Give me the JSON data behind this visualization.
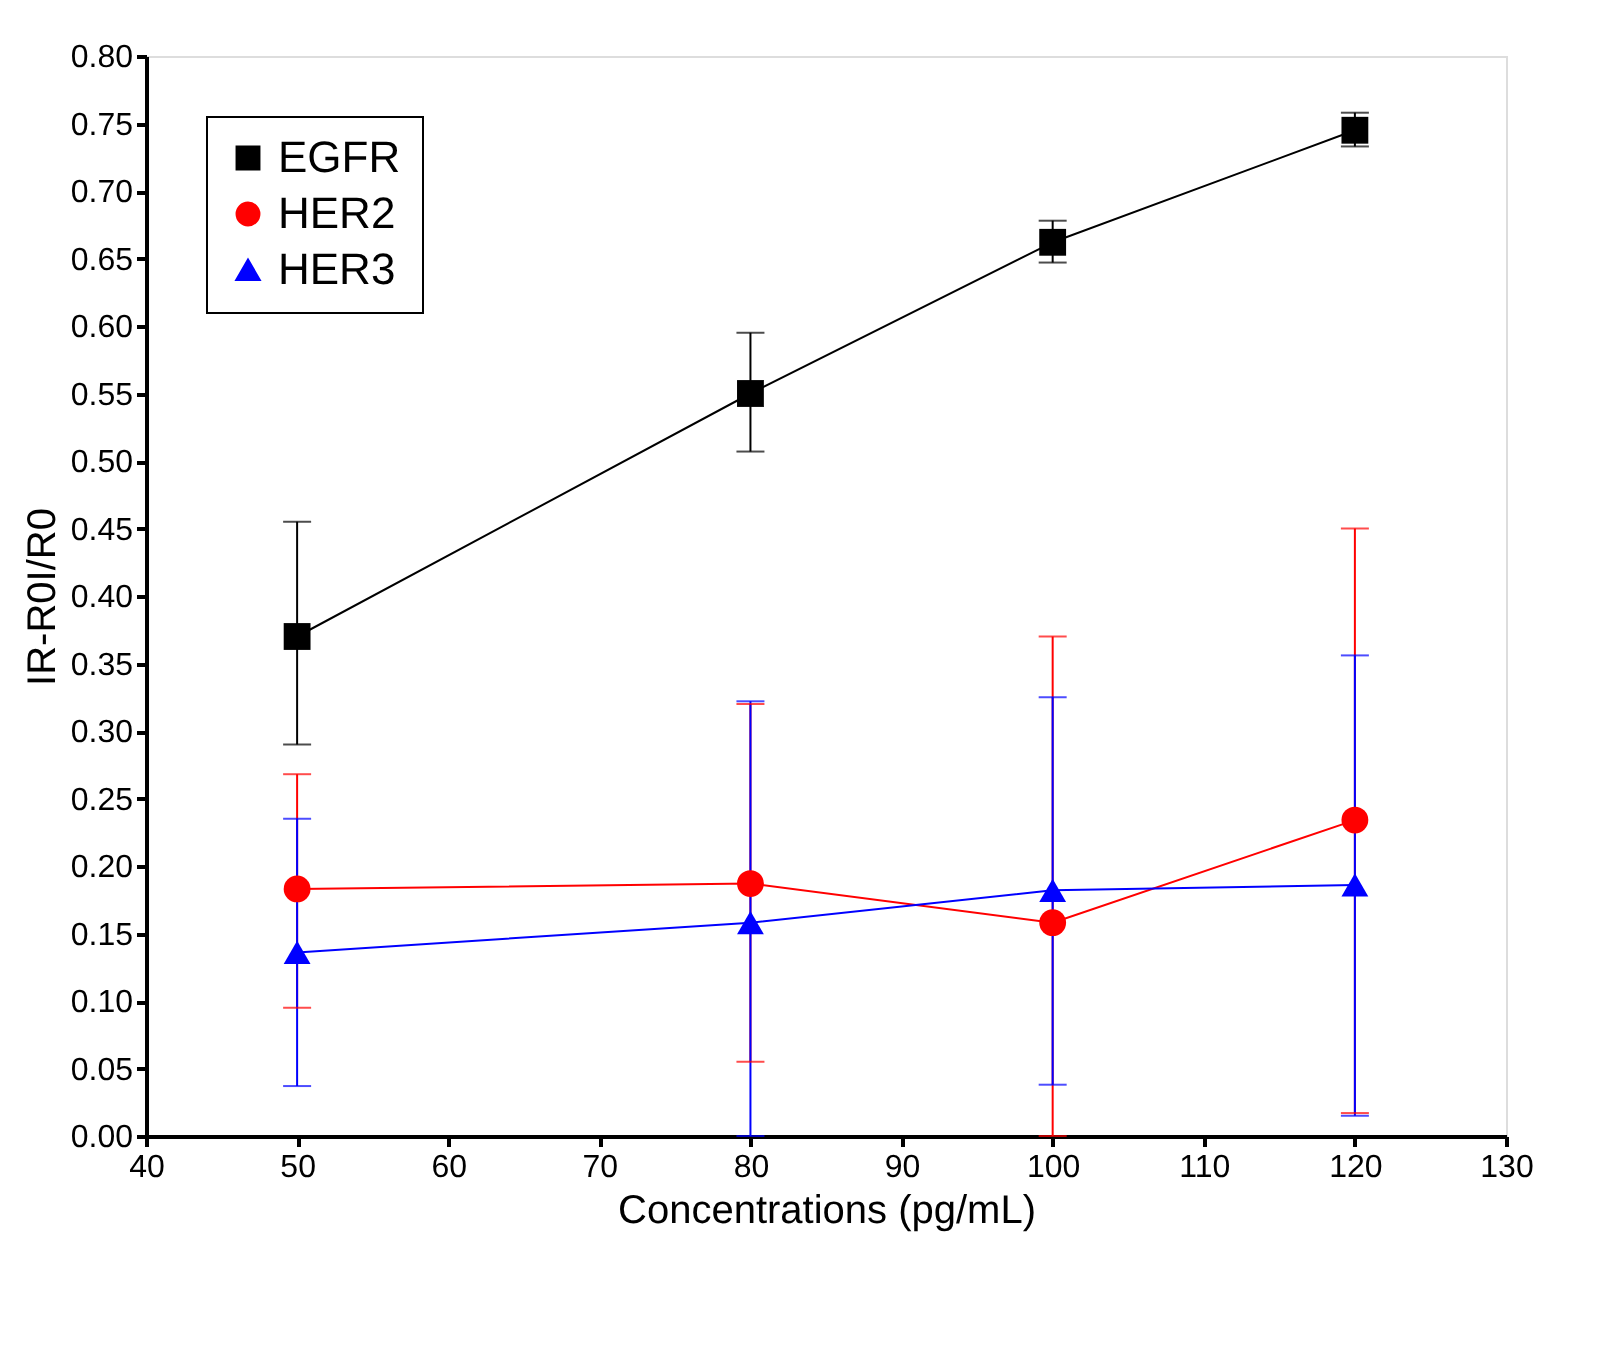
{
  "chart_data": {
    "type": "line",
    "xlabel": "Concentrations (pg/mL)",
    "ylabel": "IR-R0I/R0",
    "x": [
      50,
      80,
      100,
      120
    ],
    "series": [
      {
        "name": "EGFR",
        "color": "#000000",
        "marker": "square",
        "values": [
          0.37,
          0.55,
          0.662,
          0.745
        ],
        "errors": [
          [
            0.29,
            0.455
          ],
          [
            0.507,
            0.595
          ],
          [
            0.647,
            0.678
          ],
          [
            0.733,
            0.758
          ]
        ]
      },
      {
        "name": "HER2",
        "color": "#ff0000",
        "marker": "circle",
        "values": [
          0.183,
          0.187,
          0.158,
          0.234
        ],
        "errors": [
          [
            0.095,
            0.268
          ],
          [
            0.055,
            0.32
          ],
          [
            0.0,
            0.37
          ],
          [
            0.017,
            0.45
          ]
        ]
      },
      {
        "name": "HER3",
        "color": "#0000ff",
        "marker": "triangle",
        "values": [
          0.136,
          0.158,
          0.182,
          0.186
        ],
        "errors": [
          [
            0.037,
            0.235
          ],
          [
            0.0,
            0.322
          ],
          [
            0.038,
            0.325
          ],
          [
            0.015,
            0.356
          ]
        ]
      }
    ],
    "xlim": [
      40,
      130
    ],
    "xticks": [
      40,
      50,
      60,
      70,
      80,
      90,
      100,
      110,
      120,
      130
    ],
    "ylim": [
      0,
      0.8
    ],
    "yticks": [
      {
        "value": 0,
        "label": "0.00"
      },
      {
        "value": 0.05,
        "label": "0.05"
      },
      {
        "value": 0.1,
        "label": "0.10"
      },
      {
        "value": 0.15,
        "label": "0.15"
      },
      {
        "value": 0.2,
        "label": "0.20"
      },
      {
        "value": 0.25,
        "label": "0.25"
      },
      {
        "value": 0.3,
        "label": "0.30"
      },
      {
        "value": 0.35,
        "label": "0.35"
      },
      {
        "value": 0.4,
        "label": "0.40"
      },
      {
        "value": 0.45,
        "label": "0.45"
      },
      {
        "value": 0.5,
        "label": "0.50"
      },
      {
        "value": 0.55,
        "label": "0.55"
      },
      {
        "value": 0.6,
        "label": "0.60"
      },
      {
        "value": 0.65,
        "label": "0.65"
      },
      {
        "value": 0.7,
        "label": "0.70"
      },
      {
        "value": 0.75,
        "label": "0.75"
      },
      {
        "value": 0.8,
        "label": "0.80"
      }
    ],
    "grid": false,
    "legend": "top left",
    "line_style": "solid"
  }
}
